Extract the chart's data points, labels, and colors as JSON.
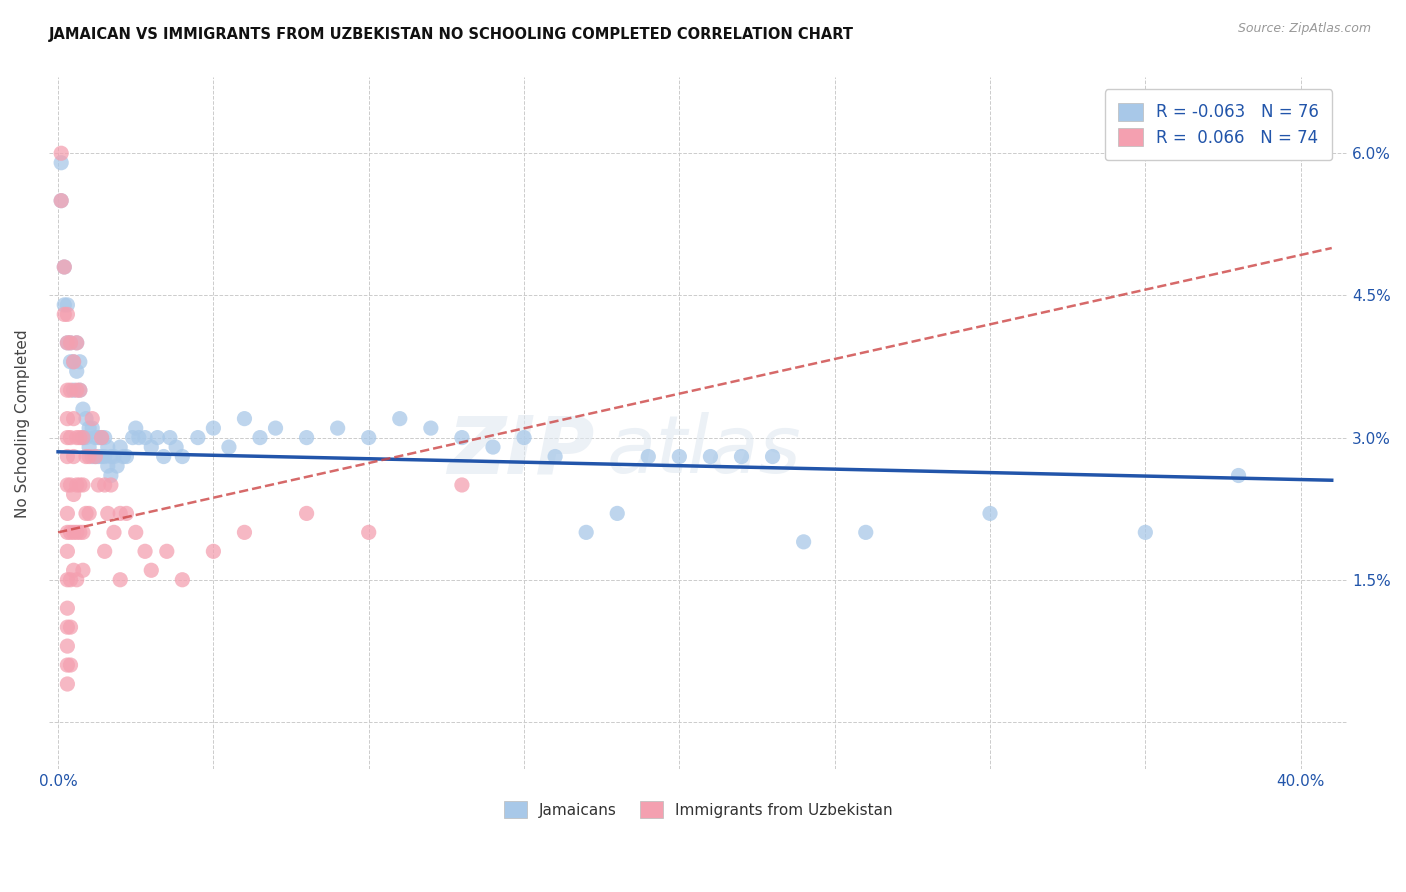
{
  "title": "JAMAICAN VS IMMIGRANTS FROM UZBEKISTAN NO SCHOOLING COMPLETED CORRELATION CHART",
  "source": "Source: ZipAtlas.com",
  "ylabel": "No Schooling Completed",
  "xlim": [
    -0.003,
    0.415
  ],
  "ylim": [
    -0.005,
    0.068
  ],
  "x_tick_positions": [
    0.0,
    0.05,
    0.1,
    0.15,
    0.2,
    0.25,
    0.3,
    0.35,
    0.4
  ],
  "x_tick_labels": [
    "0.0%",
    "",
    "",
    "",
    "",
    "",
    "",
    "",
    "40.0%"
  ],
  "y_tick_positions": [
    0.0,
    0.015,
    0.03,
    0.045,
    0.06
  ],
  "y_tick_labels_right": [
    "",
    "1.5%",
    "3.0%",
    "4.5%",
    "6.0%"
  ],
  "legend_blue_R": "-0.063",
  "legend_blue_N": "76",
  "legend_pink_R": "0.066",
  "legend_pink_N": "74",
  "legend_labels": [
    "Jamaicans",
    "Immigrants from Uzbekistan"
  ],
  "blue_color": "#a8c8e8",
  "pink_color": "#f4a0b0",
  "blue_line_color": "#2255aa",
  "pink_line_color": "#cc4444",
  "watermark": "ZIPatlas",
  "title_fontsize": 10.5,
  "source_fontsize": 9,
  "blue_scatter": [
    [
      0.001,
      0.059
    ],
    [
      0.001,
      0.055
    ],
    [
      0.002,
      0.048
    ],
    [
      0.002,
      0.044
    ],
    [
      0.003,
      0.044
    ],
    [
      0.003,
      0.04
    ],
    [
      0.004,
      0.04
    ],
    [
      0.004,
      0.038
    ],
    [
      0.005,
      0.038
    ],
    [
      0.005,
      0.035
    ],
    [
      0.006,
      0.04
    ],
    [
      0.006,
      0.037
    ],
    [
      0.007,
      0.038
    ],
    [
      0.007,
      0.035
    ],
    [
      0.008,
      0.033
    ],
    [
      0.008,
      0.03
    ],
    [
      0.009,
      0.032
    ],
    [
      0.009,
      0.03
    ],
    [
      0.01,
      0.031
    ],
    [
      0.01,
      0.029
    ],
    [
      0.011,
      0.031
    ],
    [
      0.011,
      0.028
    ],
    [
      0.012,
      0.03
    ],
    [
      0.012,
      0.028
    ],
    [
      0.013,
      0.03
    ],
    [
      0.013,
      0.028
    ],
    [
      0.014,
      0.03
    ],
    [
      0.014,
      0.028
    ],
    [
      0.015,
      0.03
    ],
    [
      0.015,
      0.028
    ],
    [
      0.016,
      0.029
    ],
    [
      0.016,
      0.027
    ],
    [
      0.017,
      0.028
    ],
    [
      0.017,
      0.026
    ],
    [
      0.018,
      0.028
    ],
    [
      0.019,
      0.027
    ],
    [
      0.02,
      0.029
    ],
    [
      0.021,
      0.028
    ],
    [
      0.022,
      0.028
    ],
    [
      0.024,
      0.03
    ],
    [
      0.025,
      0.031
    ],
    [
      0.026,
      0.03
    ],
    [
      0.028,
      0.03
    ],
    [
      0.03,
      0.029
    ],
    [
      0.032,
      0.03
    ],
    [
      0.034,
      0.028
    ],
    [
      0.036,
      0.03
    ],
    [
      0.038,
      0.029
    ],
    [
      0.04,
      0.028
    ],
    [
      0.045,
      0.03
    ],
    [
      0.05,
      0.031
    ],
    [
      0.055,
      0.029
    ],
    [
      0.06,
      0.032
    ],
    [
      0.065,
      0.03
    ],
    [
      0.07,
      0.031
    ],
    [
      0.08,
      0.03
    ],
    [
      0.09,
      0.031
    ],
    [
      0.1,
      0.03
    ],
    [
      0.11,
      0.032
    ],
    [
      0.12,
      0.031
    ],
    [
      0.13,
      0.03
    ],
    [
      0.14,
      0.029
    ],
    [
      0.15,
      0.03
    ],
    [
      0.16,
      0.028
    ],
    [
      0.17,
      0.02
    ],
    [
      0.18,
      0.022
    ],
    [
      0.19,
      0.028
    ],
    [
      0.2,
      0.028
    ],
    [
      0.21,
      0.028
    ],
    [
      0.22,
      0.028
    ],
    [
      0.23,
      0.028
    ],
    [
      0.24,
      0.019
    ],
    [
      0.26,
      0.02
    ],
    [
      0.38,
      0.026
    ],
    [
      0.35,
      0.02
    ],
    [
      0.3,
      0.022
    ]
  ],
  "pink_scatter": [
    [
      0.001,
      0.06
    ],
    [
      0.001,
      0.055
    ],
    [
      0.002,
      0.048
    ],
    [
      0.002,
      0.043
    ],
    [
      0.003,
      0.043
    ],
    [
      0.003,
      0.04
    ],
    [
      0.003,
      0.035
    ],
    [
      0.003,
      0.032
    ],
    [
      0.003,
      0.03
    ],
    [
      0.003,
      0.028
    ],
    [
      0.003,
      0.025
    ],
    [
      0.003,
      0.022
    ],
    [
      0.003,
      0.02
    ],
    [
      0.003,
      0.018
    ],
    [
      0.003,
      0.015
    ],
    [
      0.003,
      0.012
    ],
    [
      0.003,
      0.01
    ],
    [
      0.003,
      0.008
    ],
    [
      0.003,
      0.006
    ],
    [
      0.003,
      0.004
    ],
    [
      0.004,
      0.04
    ],
    [
      0.004,
      0.035
    ],
    [
      0.004,
      0.03
    ],
    [
      0.004,
      0.025
    ],
    [
      0.004,
      0.02
    ],
    [
      0.004,
      0.015
    ],
    [
      0.004,
      0.01
    ],
    [
      0.004,
      0.006
    ],
    [
      0.005,
      0.038
    ],
    [
      0.005,
      0.032
    ],
    [
      0.005,
      0.028
    ],
    [
      0.005,
      0.024
    ],
    [
      0.005,
      0.02
    ],
    [
      0.005,
      0.016
    ],
    [
      0.006,
      0.04
    ],
    [
      0.006,
      0.035
    ],
    [
      0.006,
      0.03
    ],
    [
      0.006,
      0.025
    ],
    [
      0.006,
      0.02
    ],
    [
      0.006,
      0.015
    ],
    [
      0.007,
      0.035
    ],
    [
      0.007,
      0.03
    ],
    [
      0.007,
      0.025
    ],
    [
      0.007,
      0.02
    ],
    [
      0.008,
      0.03
    ],
    [
      0.008,
      0.025
    ],
    [
      0.008,
      0.02
    ],
    [
      0.008,
      0.016
    ],
    [
      0.009,
      0.028
    ],
    [
      0.009,
      0.022
    ],
    [
      0.01,
      0.028
    ],
    [
      0.01,
      0.022
    ],
    [
      0.011,
      0.032
    ],
    [
      0.012,
      0.028
    ],
    [
      0.013,
      0.025
    ],
    [
      0.014,
      0.03
    ],
    [
      0.015,
      0.025
    ],
    [
      0.016,
      0.022
    ],
    [
      0.017,
      0.025
    ],
    [
      0.018,
      0.02
    ],
    [
      0.02,
      0.022
    ],
    [
      0.022,
      0.022
    ],
    [
      0.025,
      0.02
    ],
    [
      0.028,
      0.018
    ],
    [
      0.03,
      0.016
    ],
    [
      0.035,
      0.018
    ],
    [
      0.04,
      0.015
    ],
    [
      0.05,
      0.018
    ],
    [
      0.06,
      0.02
    ],
    [
      0.08,
      0.022
    ],
    [
      0.1,
      0.02
    ],
    [
      0.13,
      0.025
    ],
    [
      0.015,
      0.018
    ],
    [
      0.02,
      0.015
    ]
  ]
}
